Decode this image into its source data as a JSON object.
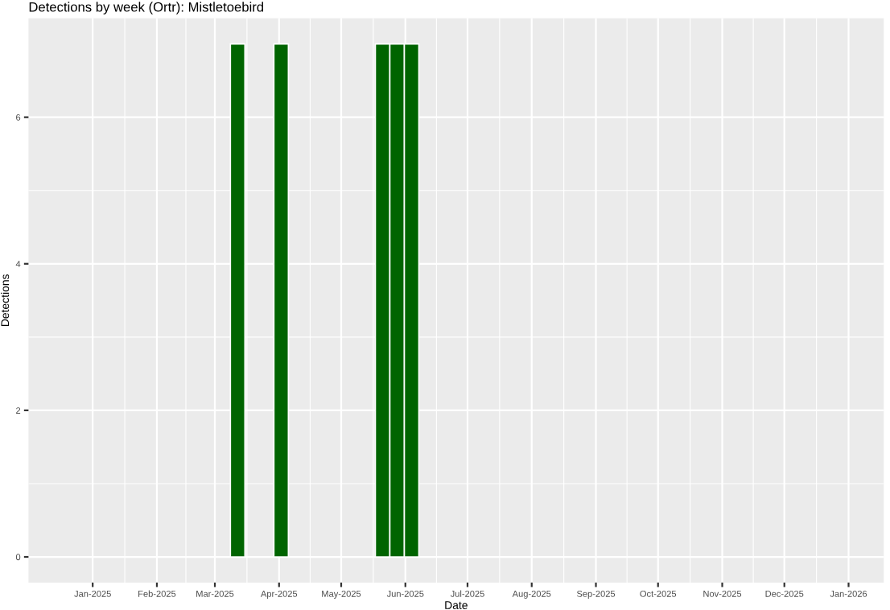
{
  "chart_data": {
    "type": "bar",
    "title": "Detections by week (Ortr): Mistletoebird",
    "xlabel": "Date",
    "ylabel": "Detections",
    "x": [
      "2025-03-12",
      "2025-04-02",
      "2025-05-21",
      "2025-05-28",
      "2025-06-04"
    ],
    "values": [
      7,
      7,
      7,
      7,
      7
    ],
    "color": "#006400",
    "xlim": [
      "2024-12-01",
      "2026-01-18"
    ],
    "xticks": [
      {
        "value": "2025-01-01",
        "label": "Jan-2025"
      },
      {
        "value": "2025-02-01",
        "label": "Feb-2025"
      },
      {
        "value": "2025-03-01",
        "label": "Mar-2025"
      },
      {
        "value": "2025-04-01",
        "label": "Apr-2025"
      },
      {
        "value": "2025-05-01",
        "label": "May-2025"
      },
      {
        "value": "2025-06-01",
        "label": "Jun-2025"
      },
      {
        "value": "2025-07-01",
        "label": "Jul-2025"
      },
      {
        "value": "2025-08-01",
        "label": "Aug-2025"
      },
      {
        "value": "2025-09-01",
        "label": "Sep-2025"
      },
      {
        "value": "2025-10-01",
        "label": "Oct-2025"
      },
      {
        "value": "2025-11-01",
        "label": "Nov-2025"
      },
      {
        "value": "2025-12-01",
        "label": "Dec-2025"
      },
      {
        "value": "2026-01-01",
        "label": "Jan-2026"
      }
    ],
    "ylim": [
      -0.35,
      7.35
    ],
    "yticks": [
      0,
      2,
      4,
      6
    ],
    "grid": true
  }
}
